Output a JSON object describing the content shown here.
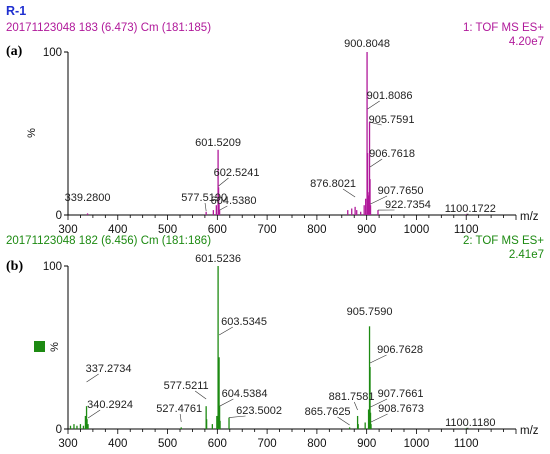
{
  "figure_title": "R-1",
  "chart_data": [
    {
      "type": "bar",
      "panel_label": "(a)",
      "header_left": "20171123048 183 (6.473) Cm (181:185)",
      "header_right_1": "1: TOF MS ES+",
      "header_right_2": "4.20e7",
      "color": "#b0199a",
      "xlabel": "m/z",
      "ylabel": "%",
      "xlim": [
        300,
        1200
      ],
      "ylim": [
        0,
        100
      ],
      "x_ticks": [
        300,
        400,
        500,
        600,
        700,
        800,
        900,
        1000,
        1100
      ],
      "y_ticks": [
        0,
        100
      ],
      "peaks": [
        {
          "x": 339.28,
          "y": 1
        },
        {
          "x": 577.519,
          "y": 2
        },
        {
          "x": 592.0,
          "y": 3
        },
        {
          "x": 598.0,
          "y": 6
        },
        {
          "x": 601.5209,
          "y": 40
        },
        {
          "x": 602.5241,
          "y": 17
        },
        {
          "x": 603.5,
          "y": 7
        },
        {
          "x": 604.538,
          "y": 3
        },
        {
          "x": 862.0,
          "y": 3
        },
        {
          "x": 870.0,
          "y": 4
        },
        {
          "x": 876.8021,
          "y": 5
        },
        {
          "x": 880.0,
          "y": 3
        },
        {
          "x": 888.0,
          "y": 2
        },
        {
          "x": 895.0,
          "y": 6
        },
        {
          "x": 898.0,
          "y": 10
        },
        {
          "x": 900.8048,
          "y": 100
        },
        {
          "x": 901.8086,
          "y": 38
        },
        {
          "x": 902.8,
          "y": 14
        },
        {
          "x": 904.8,
          "y": 12
        },
        {
          "x": 905.7591,
          "y": 57
        },
        {
          "x": 906.7618,
          "y": 22
        },
        {
          "x": 907.765,
          "y": 6
        },
        {
          "x": 922.7354,
          "y": 3
        },
        {
          "x": 1100.1722,
          "y": 0.5
        }
      ],
      "annotations": [
        {
          "text": "339.2800",
          "x": 339.28
        },
        {
          "text": "577.5190",
          "x": 577.519
        },
        {
          "text": "601.5209",
          "x": 601.5209
        },
        {
          "text": "602.5241",
          "x": 602.5241
        },
        {
          "text": "604.5380",
          "x": 604.538
        },
        {
          "text": "876.8021",
          "x": 876.8021
        },
        {
          "text": "900.8048",
          "x": 900.8048
        },
        {
          "text": "901.8086",
          "x": 901.8086
        },
        {
          "text": "905.7591",
          "x": 905.7591
        },
        {
          "text": "906.7618",
          "x": 906.7618
        },
        {
          "text": "907.7650",
          "x": 907.765
        },
        {
          "text": "922.7354",
          "x": 922.7354
        },
        {
          "text": "1100.1722",
          "x": 1100.1722
        }
      ]
    },
    {
      "type": "bar",
      "panel_label": "(b)",
      "header_left": "20171123048 182 (6.456) Cm (181:186)",
      "header_right_1": "2: TOF MS ES+",
      "header_right_2": "2.41e7",
      "color": "#1d8a12",
      "xlabel": "m/z",
      "ylabel": "%",
      "xlim": [
        300,
        1200
      ],
      "ylim": [
        0,
        100
      ],
      "x_ticks": [
        300,
        400,
        500,
        600,
        700,
        800,
        900,
        1000,
        1100
      ],
      "y_ticks": [
        0,
        100
      ],
      "peaks": [
        {
          "x": 305.0,
          "y": 2
        },
        {
          "x": 312.0,
          "y": 3
        },
        {
          "x": 318.0,
          "y": 2
        },
        {
          "x": 325.0,
          "y": 3
        },
        {
          "x": 331.0,
          "y": 2
        },
        {
          "x": 335.0,
          "y": 8
        },
        {
          "x": 337.2734,
          "y": 14
        },
        {
          "x": 338.3,
          "y": 6
        },
        {
          "x": 340.2924,
          "y": 3
        },
        {
          "x": 527.4761,
          "y": 1
        },
        {
          "x": 577.5211,
          "y": 14
        },
        {
          "x": 578.5,
          "y": 6
        },
        {
          "x": 590.0,
          "y": 3
        },
        {
          "x": 599.0,
          "y": 8
        },
        {
          "x": 601.5236,
          "y": 100
        },
        {
          "x": 602.5,
          "y": 40
        },
        {
          "x": 603.5345,
          "y": 44
        },
        {
          "x": 604.5384,
          "y": 14
        },
        {
          "x": 605.5,
          "y": 5
        },
        {
          "x": 623.5002,
          "y": 7
        },
        {
          "x": 865.7625,
          "y": 1
        },
        {
          "x": 881.7581,
          "y": 8
        },
        {
          "x": 883.0,
          "y": 3
        },
        {
          "x": 897.0,
          "y": 4
        },
        {
          "x": 903.8,
          "y": 12
        },
        {
          "x": 905.759,
          "y": 63
        },
        {
          "x": 906.7628,
          "y": 38
        },
        {
          "x": 907.7661,
          "y": 10
        },
        {
          "x": 908.7673,
          "y": 3
        },
        {
          "x": 1100.118,
          "y": 0.5
        }
      ],
      "annotations": [
        {
          "text": "337.2734",
          "x": 337.2734
        },
        {
          "text": "340.2924",
          "x": 340.2924
        },
        {
          "text": "527.4761",
          "x": 527.4761
        },
        {
          "text": "577.5211",
          "x": 577.5211
        },
        {
          "text": "601.5236",
          "x": 601.5236
        },
        {
          "text": "603.5345",
          "x": 603.5345
        },
        {
          "text": "604.5384",
          "x": 604.5384
        },
        {
          "text": "623.5002",
          "x": 623.5002
        },
        {
          "text": "865.7625",
          "x": 865.7625
        },
        {
          "text": "881.7581",
          "x": 881.7581
        },
        {
          "text": "905.7590",
          "x": 905.759
        },
        {
          "text": "906.7628",
          "x": 906.7628
        },
        {
          "text": "907.7661",
          "x": 907.7661
        },
        {
          "text": "908.7673",
          "x": 908.7673
        },
        {
          "text": "1100.1180",
          "x": 1100.118
        }
      ]
    }
  ]
}
